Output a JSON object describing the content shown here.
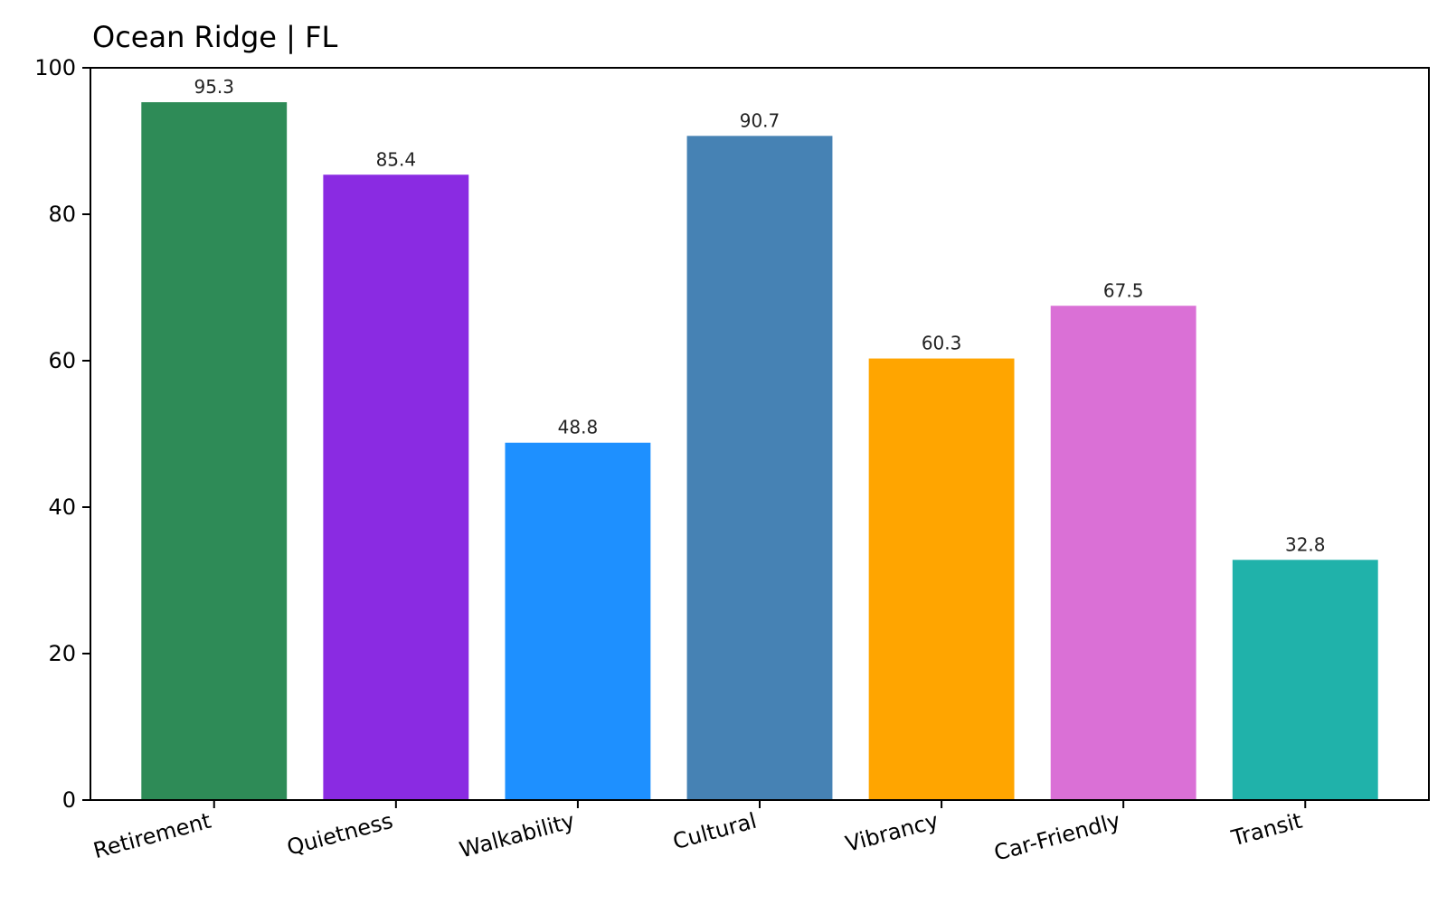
{
  "chart_data": {
    "type": "bar",
    "title": "Ocean Ridge | FL",
    "xlabel": "",
    "ylabel": "",
    "categories": [
      "Retirement",
      "Quietness",
      "Walkability",
      "Cultural",
      "Vibrancy",
      "Car-Friendly",
      "Transit"
    ],
    "values": [
      95.3,
      85.4,
      48.8,
      90.7,
      60.3,
      67.5,
      32.8
    ],
    "value_labels": [
      "95.3",
      "85.4",
      "48.8",
      "90.7",
      "60.3",
      "67.5",
      "32.8"
    ],
    "colors": [
      "#2e8b57",
      "#8a2be2",
      "#1e90ff",
      "#4682b4",
      "#ffa500",
      "#da70d6",
      "#20b2aa"
    ],
    "ylim": [
      0,
      100
    ],
    "yticks": [
      0,
      20,
      40,
      60,
      80,
      100
    ],
    "ytick_labels": [
      "0",
      "20",
      "40",
      "60",
      "80",
      "100"
    ],
    "grid": false,
    "legend": "none"
  }
}
